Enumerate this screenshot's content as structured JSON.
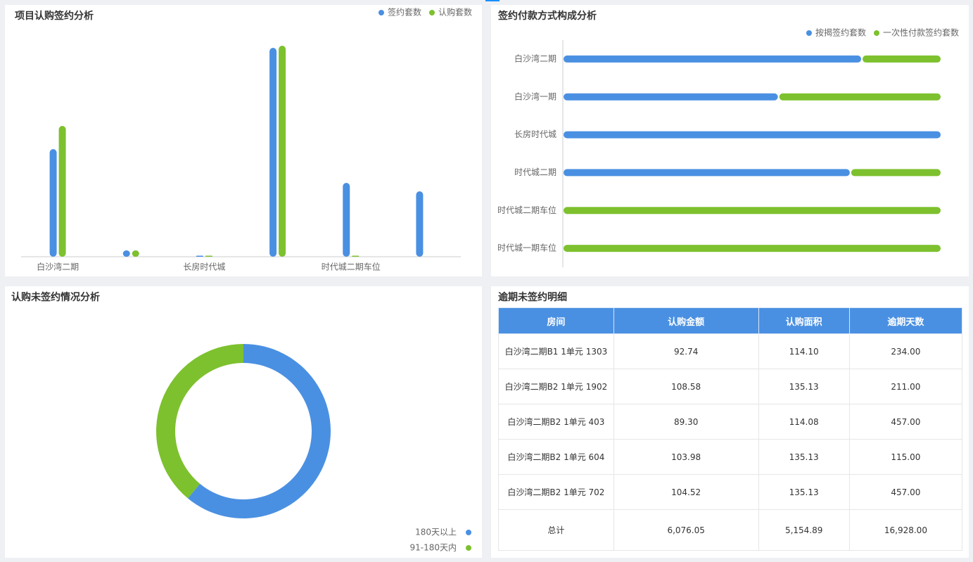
{
  "chart_data": [
    {
      "type": "bar",
      "title": "项目认购签约分析",
      "categories": [
        "白沙湾二期",
        null,
        "长房时代城",
        null,
        "时代城二期车位",
        null
      ],
      "series": [
        {
          "name": "签约套数",
          "color": "#4a90e2",
          "values": [
            51,
            3,
            0,
            99,
            35,
            31
          ]
        },
        {
          "name": "认购套数",
          "color": "#7dc12e",
          "values": [
            62,
            3,
            0,
            100,
            0,
            null
          ]
        }
      ],
      "ylim": [
        0,
        100
      ],
      "legend": "top-right"
    },
    {
      "type": "bar",
      "orientation": "horizontal",
      "stacked": true,
      "title": "签约付款方式构成分析",
      "categories": [
        "白沙湾二期",
        "白沙湾一期",
        "长房时代城",
        "时代城二期",
        "时代城二期车位",
        "时代城一期车位"
      ],
      "series": [
        {
          "name": "按揭签约套数",
          "color": "#4a90e2",
          "values": [
            79,
            57,
            100,
            76,
            0,
            0
          ]
        },
        {
          "name": "一次性付款签约套数",
          "color": "#7dc12e",
          "values": [
            21,
            43,
            0,
            24,
            100,
            100
          ]
        }
      ],
      "xlim": [
        0,
        100
      ],
      "legend": "top-right"
    },
    {
      "type": "pie",
      "donut": true,
      "title": "认购未签约情况分析",
      "categories": [
        "180天以上",
        "91-180天内"
      ],
      "values": [
        61,
        39
      ],
      "colors": [
        "#4a90e2",
        "#7dc12e"
      ],
      "legend": "bottom-right"
    }
  ],
  "table": {
    "title": "逾期未签约明细",
    "header": [
      "房间",
      "认购金额",
      "认购面积",
      "逾期天数"
    ],
    "rows": [
      [
        "白沙湾二期B1 1单元 1303",
        "92.74",
        "114.10",
        "234.00"
      ],
      [
        "白沙湾二期B2 1单元 1902",
        "108.58",
        "135.13",
        "211.00"
      ],
      [
        "白沙湾二期B2 1单元 403",
        "89.30",
        "114.08",
        "457.00"
      ],
      [
        "白沙湾二期B2 1单元 604",
        "103.98",
        "135.13",
        "115.00"
      ],
      [
        "白沙湾二期B2 1单元 702",
        "104.52",
        "135.13",
        "457.00"
      ],
      [
        "总计",
        "6,076.05",
        "5,154.89",
        "16,928.00"
      ]
    ]
  }
}
